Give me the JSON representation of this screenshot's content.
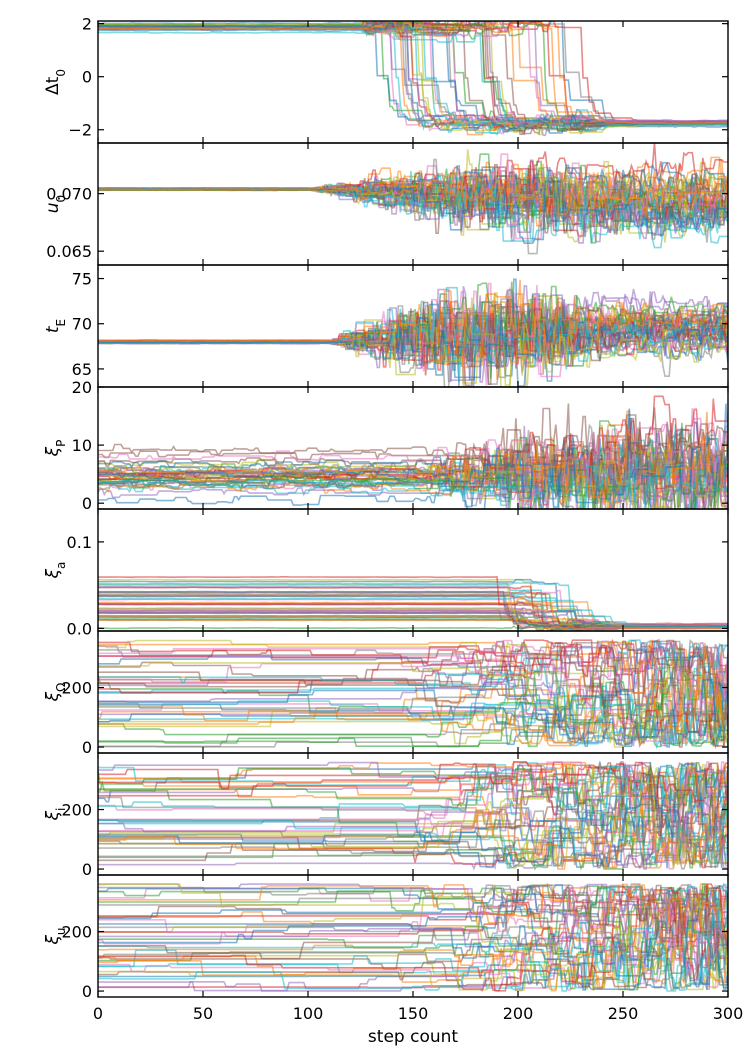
{
  "chart_data": {
    "type": "line",
    "description_note": "",
    "x": {
      "label": "step count",
      "ticks": [
        0,
        50,
        100,
        150,
        200,
        250,
        300
      ],
      "tick_labels": [
        "0",
        "50",
        "100",
        "150",
        "200",
        "250",
        "300"
      ],
      "lim": [
        0,
        300
      ]
    },
    "panels": [
      {
        "id": "dt0",
        "ylabel_main": "Δt",
        "ylabel_sub": "0",
        "ylim": [
          -2.5,
          2.1
        ],
        "yticks": [
          -2,
          0,
          2
        ],
        "ytick_labels": [
          "−2",
          "0",
          "2"
        ],
        "trend": {
          "start_center": 1.85,
          "start_spread": 0.06,
          "end_center": -1.75,
          "end_spread": 0.05,
          "transition_start": 125,
          "transition_end": 235,
          "peak_noise": 0.35,
          "jump": true,
          "jump_range": [
            130,
            225
          ]
        }
      },
      {
        "id": "u0",
        "ylabel_main": "u",
        "ylabel_sub": "0",
        "ylim": [
          0.0638,
          0.0744
        ],
        "yticks": [
          0.065,
          0.07
        ],
        "ytick_labels": [
          "0.065",
          "0.070"
        ],
        "trend": {
          "start_center": 0.0704,
          "start_spread": 5e-05,
          "end_center": 0.069,
          "end_spread": 0.0012,
          "transition_start": 100,
          "transition_end": 260,
          "peak_noise": 0.0022,
          "jump": false
        }
      },
      {
        "id": "tE",
        "ylabel_main": "t",
        "ylabel_sub": "E",
        "ylim": [
          63,
          76.5
        ],
        "yticks": [
          65,
          70,
          75
        ],
        "ytick_labels": [
          "65",
          "70",
          "75"
        ],
        "trend": {
          "start_center": 68.0,
          "start_spread": 0.1,
          "end_center": 69.5,
          "end_spread": 1.2,
          "transition_start": 110,
          "transition_end": 240,
          "peak_noise": 5.5,
          "jump": false
        }
      },
      {
        "id": "xiP",
        "ylabel_main": "ξ",
        "ylabel_sub": "P",
        "ylim": [
          -1,
          20
        ],
        "yticks": [
          0,
          10,
          20
        ],
        "ytick_labels": [
          "0",
          "10",
          "20"
        ],
        "trend": {
          "start_center": 5.0,
          "start_spread": 2.0,
          "end_center": 6.0,
          "end_spread": 3.2,
          "transition_start": 150,
          "transition_end": 300,
          "peak_noise": 4.5,
          "jump": false
        }
      },
      {
        "id": "xia",
        "ylabel_main": "ξ",
        "ylabel_sub": "a",
        "ylim": [
          -0.003,
          0.138
        ],
        "yticks": [
          0.0,
          0.1
        ],
        "ytick_labels": [
          "0.0",
          "0.1"
        ],
        "trend": {
          "start_center": 0.03,
          "start_spread": 0.015,
          "end_center": 0.002,
          "end_spread": 0.001,
          "transition_start": 195,
          "transition_end": 240,
          "peak_noise": 0.004,
          "jump": true,
          "jump_range": [
            190,
            230
          ]
        }
      },
      {
        "id": "xiOmega",
        "ylabel_main": "ξ",
        "ylabel_sub": "Ω",
        "ylim": [
          -20,
          390
        ],
        "yticks": [
          0,
          200
        ],
        "ytick_labels": [
          "0",
          "200"
        ],
        "trend": {
          "start_center": 180,
          "start_spread": 110,
          "end_center": 180,
          "end_spread": 110,
          "transition_start": 140,
          "transition_end": 300,
          "peak_noise": 90,
          "jump": false
        }
      },
      {
        "id": "xii",
        "ylabel_main": "ξ",
        "ylabel_sub": "i",
        "ylim": [
          -20,
          390
        ],
        "yticks": [
          0,
          200
        ],
        "ytick_labels": [
          "0",
          "200"
        ],
        "trend": {
          "start_center": 180,
          "start_spread": 110,
          "end_center": 180,
          "end_spread": 110,
          "transition_start": 140,
          "transition_end": 300,
          "peak_noise": 90,
          "jump": false
        }
      },
      {
        "id": "xiu",
        "ylabel_main": "ξ",
        "ylabel_sub": "u",
        "ylim": [
          -20,
          390
        ],
        "yticks": [
          0,
          200
        ],
        "ytick_labels": [
          "0",
          "200"
        ],
        "trend": {
          "start_center": 180,
          "start_spread": 110,
          "end_center": 180,
          "end_spread": 110,
          "transition_start": 140,
          "transition_end": 300,
          "peak_noise": 90,
          "jump": false
        }
      }
    ],
    "walkers_per_panel": 42,
    "series_colors": [
      "#1f77b4",
      "#ff7f0e",
      "#2ca02c",
      "#d62728",
      "#9467bd",
      "#8c564b",
      "#e377c2",
      "#7f7f7f",
      "#bcbd22",
      "#17becf"
    ],
    "grid": false,
    "legend": "none"
  }
}
